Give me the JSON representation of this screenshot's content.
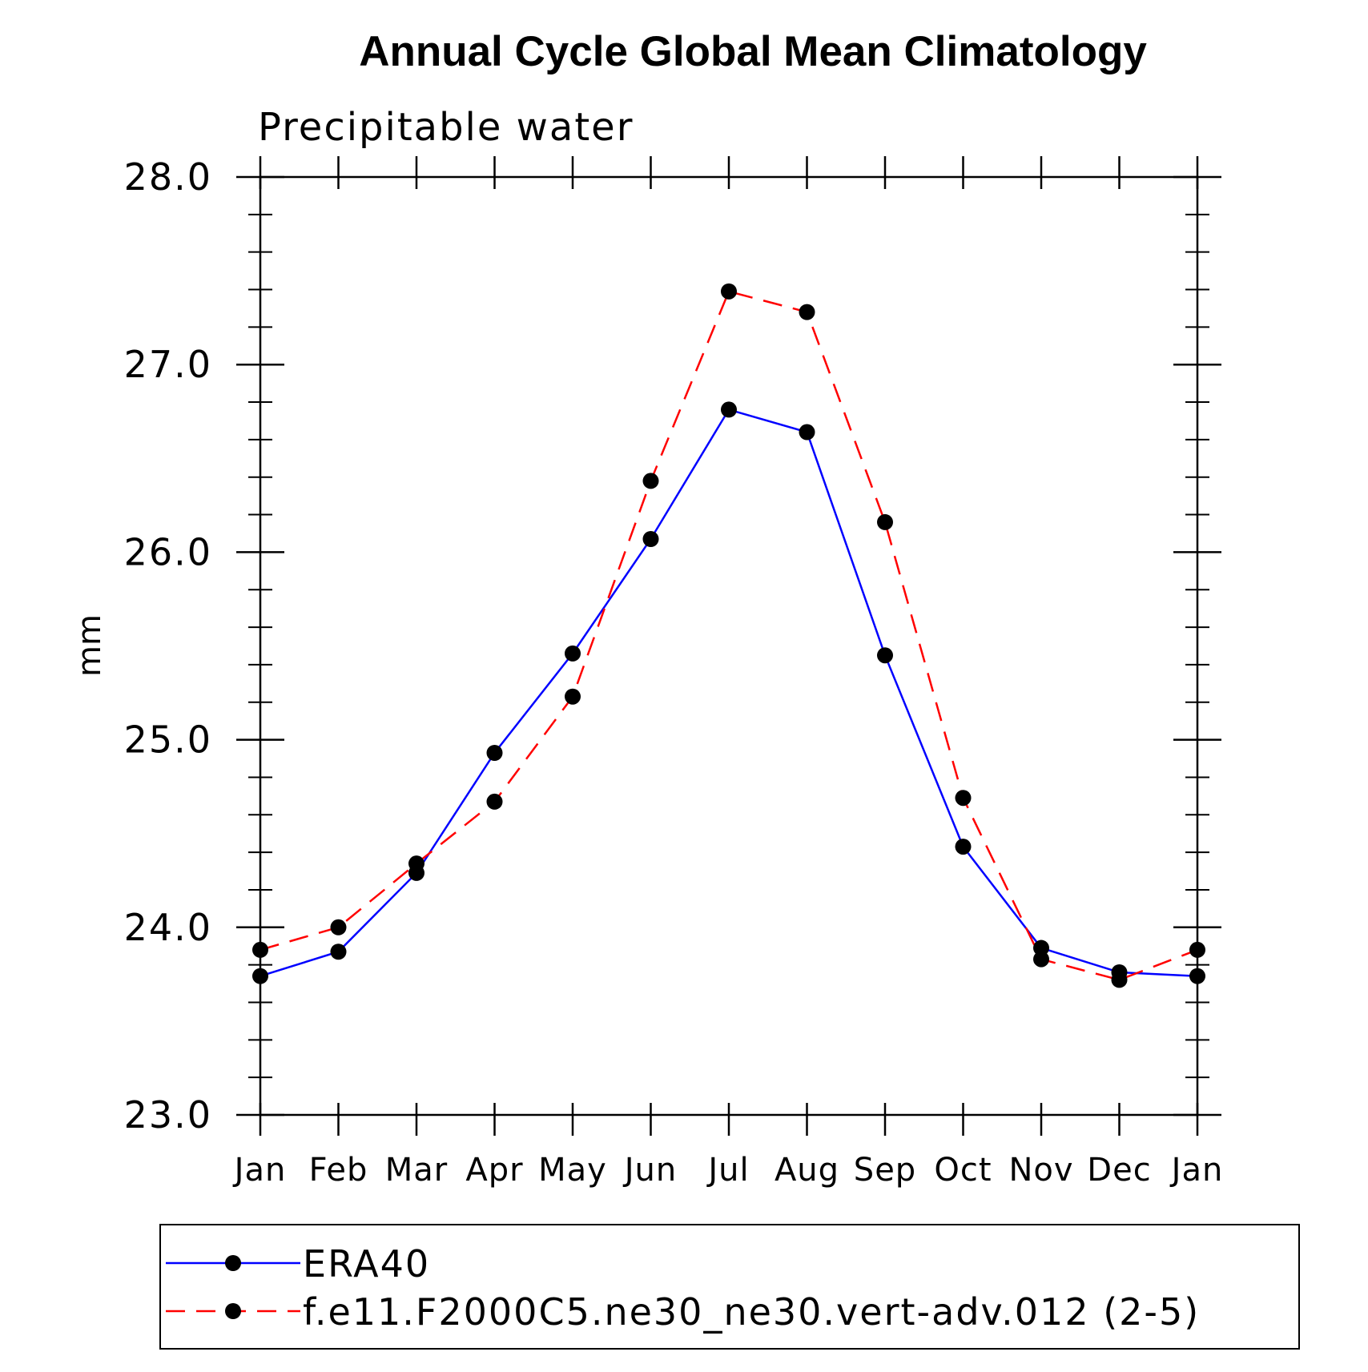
{
  "chart_data": {
    "type": "line",
    "title": "Annual Cycle Global Mean Climatology",
    "subtitle": "Precipitable water",
    "xlabel": "",
    "ylabel": "mm",
    "categories": [
      "Jan",
      "Feb",
      "Mar",
      "Apr",
      "May",
      "Jun",
      "Jul",
      "Aug",
      "Sep",
      "Oct",
      "Nov",
      "Dec",
      "Jan"
    ],
    "ylim": [
      23.0,
      28.0
    ],
    "yticks": [
      "23.0",
      "24.0",
      "25.0",
      "26.0",
      "27.0",
      "28.0"
    ],
    "ytick_values": [
      23.0,
      24.0,
      25.0,
      26.0,
      27.0,
      28.0
    ],
    "y_minor_step": 0.2,
    "grid": false,
    "legend_position": "bottom",
    "series": [
      {
        "name": "ERA40",
        "color": "#0000ff",
        "line_style": "solid",
        "marker": "filled-circle",
        "values": [
          23.74,
          23.87,
          24.29,
          24.93,
          25.46,
          26.07,
          26.76,
          26.64,
          25.45,
          24.43,
          23.89,
          23.76,
          23.74
        ]
      },
      {
        "name": "f.e11.F2000C5.ne30_ne30.vert-adv.012 (2-5)",
        "color": "#ff0000",
        "line_style": "dashed",
        "marker": "filled-circle",
        "values": [
          23.88,
          24.0,
          24.34,
          24.67,
          25.23,
          26.38,
          27.39,
          27.28,
          26.16,
          24.69,
          23.83,
          23.72,
          23.88
        ]
      }
    ]
  }
}
